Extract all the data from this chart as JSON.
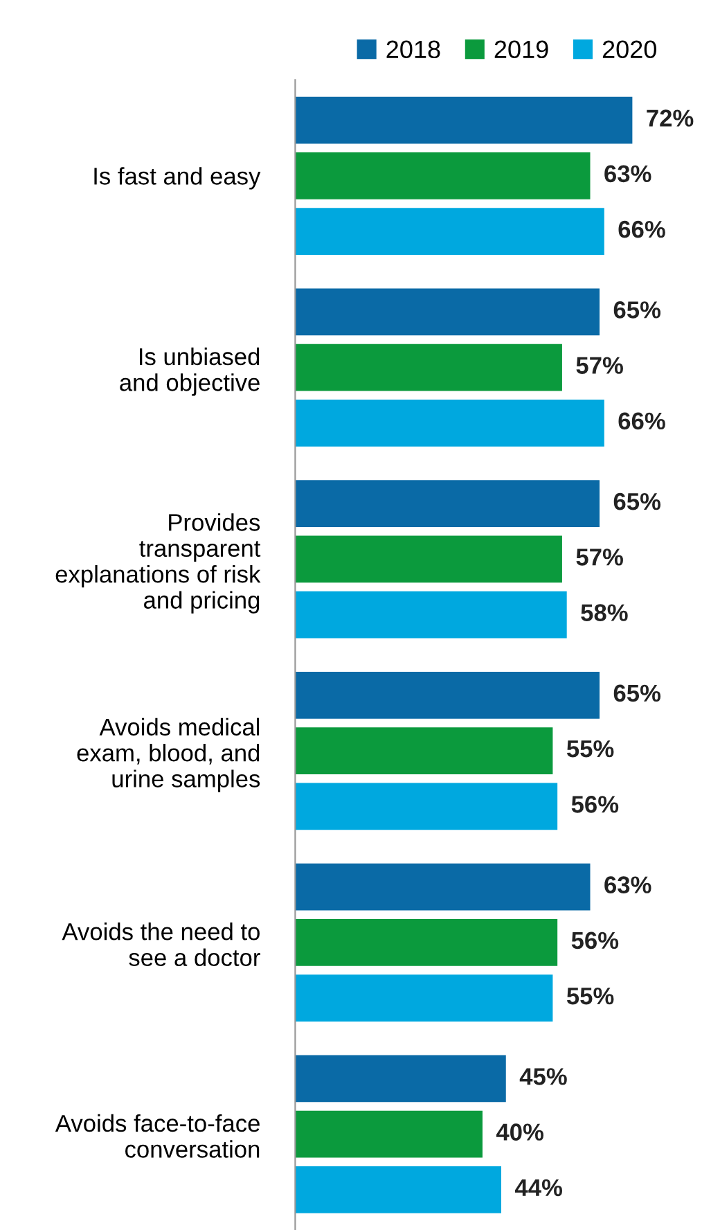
{
  "chart_data": {
    "type": "bar",
    "orientation": "horizontal",
    "categories": [
      "Is fast and easy",
      "Is unbiased\nand objective",
      "Provides\ntransparent\nexplanations of risk\nand pricing",
      "Avoids medical\nexam, blood, and\nurine samples",
      "Avoids the need to\nsee a doctor",
      "Avoids face-to-face\nconversation"
    ],
    "series": [
      {
        "name": "2018",
        "color": "#0a6aa6",
        "values": [
          72,
          65,
          65,
          65,
          63,
          45
        ],
        "value_labels": [
          "72%",
          "65%",
          "65%",
          "65%",
          "63%",
          "45%"
        ]
      },
      {
        "name": "2019",
        "color": "#0b9a3d",
        "values": [
          63,
          57,
          57,
          55,
          56,
          40
        ],
        "value_labels": [
          "63%",
          "57%",
          "57%",
          "55%",
          "56%",
          "40%"
        ]
      },
      {
        "name": "2020",
        "color": "#00a8df",
        "values": [
          66,
          66,
          58,
          56,
          55,
          44
        ],
        "value_labels": [
          "66%",
          "66%",
          "58%",
          "56%",
          "55%",
          "44%"
        ]
      }
    ],
    "legend": "top",
    "grid": false,
    "tick_labels": "y"
  }
}
